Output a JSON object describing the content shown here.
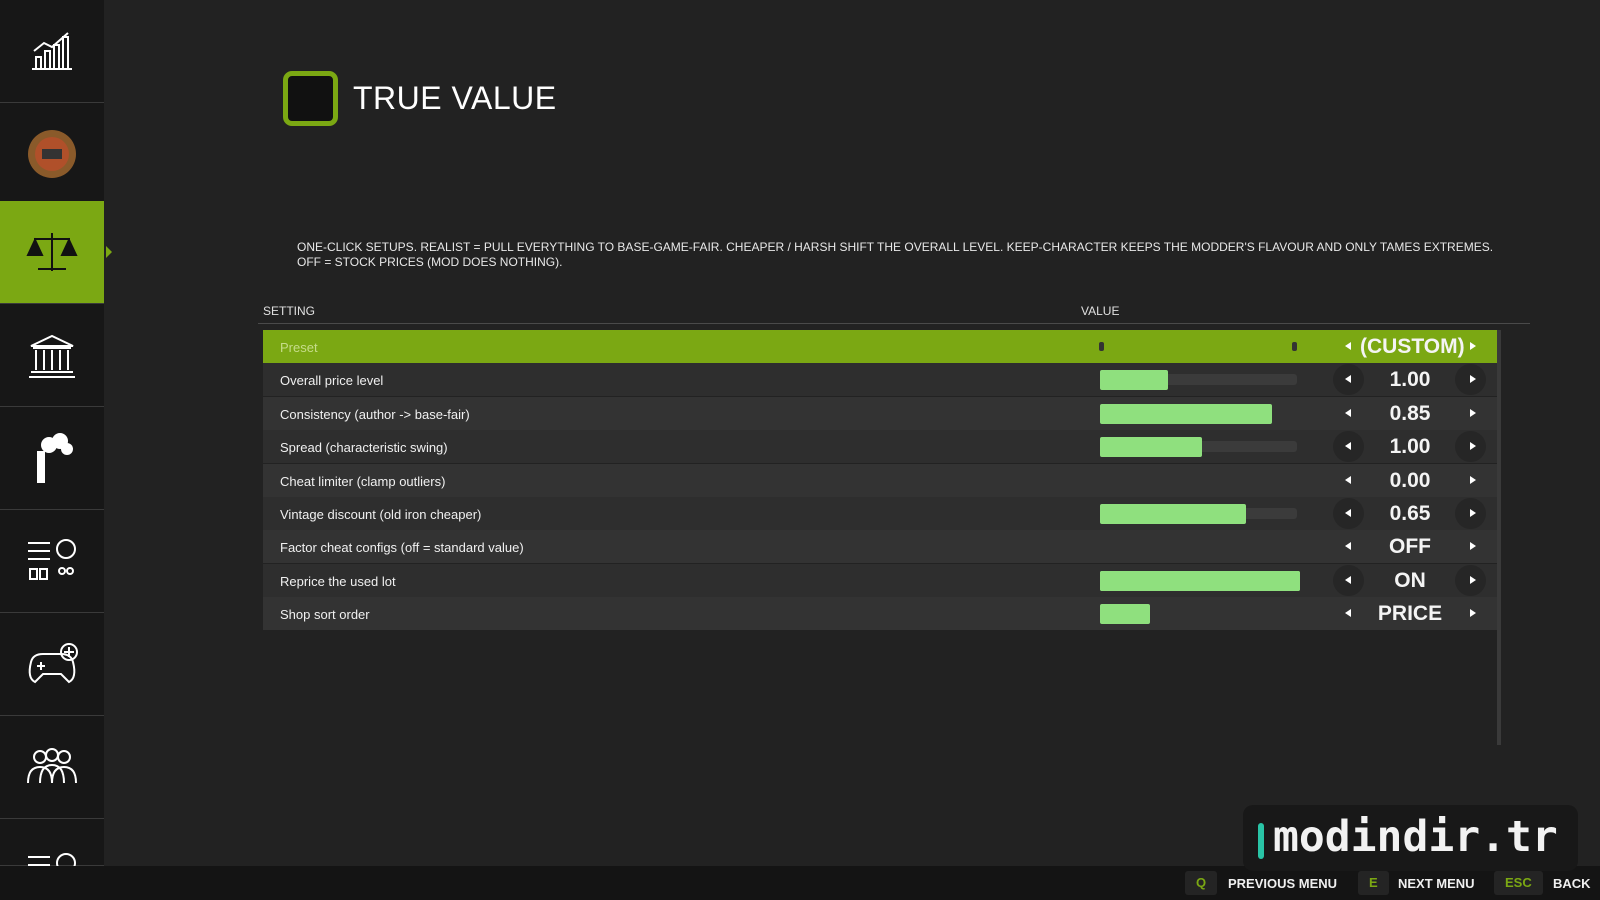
{
  "header": {
    "title": "TRUE VALUE"
  },
  "description": "ONE-CLICK SETUPS. REALIST = PULL EVERYTHING TO BASE-GAME-FAIR. CHEAPER / HARSH SHIFT THE OVERALL LEVEL. KEEP-CHARACTER KEEPS THE MODDER'S FLAVOUR AND ONLY TAMES EXTREMES. OFF = STOCK PRICES (MOD DOES NOTHING).",
  "table": {
    "columns": [
      "SETTING",
      "VALUE"
    ],
    "rows": [
      [
        "Preset",
        "(CUSTOM)"
      ],
      [
        "Overall price level",
        "1.00"
      ],
      [
        "Consistency  (author -> base-fair)",
        "0.85"
      ],
      [
        "Spread  (characteristic swing)",
        "1.00"
      ],
      [
        "Cheat limiter  (clamp outliers)",
        "0.00"
      ],
      [
        "Vintage discount  (old iron cheaper)",
        "0.65"
      ],
      [
        "Factor cheat configs  (off = standard value)",
        "OFF"
      ],
      [
        "Reprice the used lot",
        "ON"
      ],
      [
        "Shop sort order",
        "PRICE"
      ]
    ]
  },
  "footer": [
    [
      "Q",
      "PREVIOUS MENU"
    ],
    [
      "E",
      "NEXT MENU"
    ],
    [
      "ESC",
      "BACK"
    ]
  ],
  "watermark": "modindir.tr"
}
